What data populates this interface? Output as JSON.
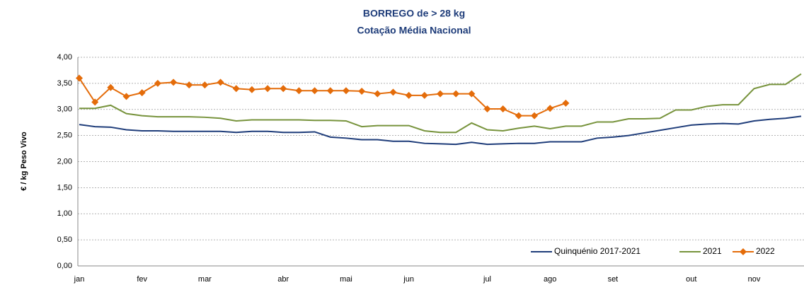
{
  "chart_data": {
    "type": "line",
    "title": [
      "BORREGO de > 28 kg",
      "Cotação Média Nacional"
    ],
    "y_label": "€ / kg Peso Vivo",
    "categories": [
      "jan",
      null,
      null,
      null,
      "fev",
      null,
      null,
      null,
      "mar",
      null,
      null,
      null,
      null,
      "abr",
      null,
      null,
      null,
      "mai",
      null,
      null,
      null,
      "jun",
      null,
      null,
      null,
      null,
      "jul",
      null,
      null,
      null,
      "ago",
      null,
      null,
      null,
      "set",
      null,
      null,
      null,
      null,
      "out",
      null,
      null,
      null,
      "nov",
      null,
      null,
      null
    ],
    "series": [
      {
        "name": "Quinquénio 2017-2021",
        "color": "#1f3d7a",
        "marker": false,
        "values": [
          2.71,
          2.67,
          2.66,
          2.61,
          2.59,
          2.59,
          2.58,
          2.58,
          2.58,
          2.58,
          2.56,
          2.58,
          2.58,
          2.56,
          2.56,
          2.57,
          2.47,
          2.45,
          2.42,
          2.42,
          2.39,
          2.39,
          2.35,
          2.34,
          2.33,
          2.37,
          2.33,
          2.34,
          2.35,
          2.35,
          2.38,
          2.38,
          2.38,
          2.45,
          2.47,
          2.5,
          2.55,
          2.6,
          2.65,
          2.7,
          2.72,
          2.73,
          2.72,
          2.78,
          2.81,
          2.83,
          2.87
        ]
      },
      {
        "name": "2021",
        "color": "#77933c",
        "marker": false,
        "values": [
          3.02,
          3.02,
          3.08,
          2.92,
          2.88,
          2.86,
          2.86,
          2.86,
          2.85,
          2.83,
          2.78,
          2.8,
          2.8,
          2.8,
          2.8,
          2.79,
          2.79,
          2.78,
          2.67,
          2.69,
          2.69,
          2.69,
          2.59,
          2.56,
          2.56,
          2.74,
          2.61,
          2.59,
          2.64,
          2.68,
          2.63,
          2.68,
          2.68,
          2.76,
          2.76,
          2.82,
          2.82,
          2.83,
          2.99,
          2.99,
          3.06,
          3.09,
          3.09,
          3.4,
          3.48,
          3.48,
          3.68
        ]
      },
      {
        "name": "2022",
        "color": "#e46c0a",
        "marker": true,
        "values": [
          3.6,
          3.14,
          3.42,
          3.25,
          3.32,
          3.5,
          3.52,
          3.47,
          3.47,
          3.52,
          3.4,
          3.38,
          3.4,
          3.4,
          3.36,
          3.36,
          3.36,
          3.36,
          3.35,
          3.3,
          3.33,
          3.27,
          3.27,
          3.3,
          3.3,
          3.3,
          3.01,
          3.01,
          2.88,
          2.88,
          3.02,
          3.12,
          null,
          null,
          null,
          null,
          null,
          null,
          null,
          null,
          null,
          null,
          null,
          null,
          null,
          null,
          null
        ]
      }
    ],
    "ylim": [
      0,
      4
    ],
    "yticks": [
      {
        "value": 0,
        "label": "0,00"
      },
      {
        "value": 0.5,
        "label": "0,50"
      },
      {
        "value": 1,
        "label": "1,00"
      },
      {
        "value": 1.5,
        "label": "1,50"
      },
      {
        "value": 2,
        "label": "2,00"
      },
      {
        "value": 2.5,
        "label": "2,50"
      },
      {
        "value": 3,
        "label": "3,00"
      },
      {
        "value": 3.5,
        "label": "3,50"
      },
      {
        "value": 4,
        "label": "4,00"
      }
    ],
    "grid": true,
    "legend": "lower right"
  }
}
